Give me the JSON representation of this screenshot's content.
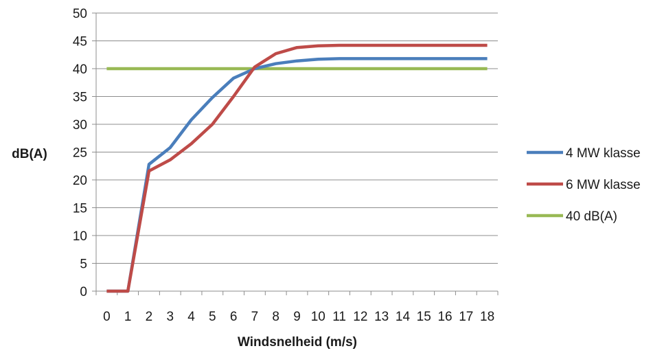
{
  "chart_data": {
    "type": "line",
    "title": "",
    "xlabel": "Windsnelheid (m/s)",
    "ylabel": "dB(A)",
    "x": [
      0,
      1,
      2,
      3,
      4,
      5,
      6,
      7,
      8,
      9,
      10,
      11,
      12,
      13,
      14,
      15,
      16,
      17,
      18
    ],
    "x_tick_labels": [
      "0",
      "1",
      "2",
      "3",
      "4",
      "5",
      "6",
      "7",
      "8",
      "9",
      "10",
      "11",
      "12",
      "13",
      "14",
      "15",
      "16",
      "17",
      "18"
    ],
    "y_ticks": [
      0,
      5,
      10,
      15,
      20,
      25,
      30,
      35,
      40,
      45,
      50
    ],
    "y_tick_labels": [
      "0",
      "5",
      "10",
      "15",
      "20",
      "25",
      "30",
      "35",
      "40",
      "45",
      "50"
    ],
    "xlim": [
      0,
      18
    ],
    "ylim": [
      0,
      50
    ],
    "grid": "horizontal",
    "legend_position": "right",
    "series": [
      {
        "name": "4 MW klasse",
        "color": "#4a7ebb",
        "values": [
          0,
          0,
          22.8,
          25.8,
          30.8,
          34.8,
          38.3,
          40.0,
          40.9,
          41.4,
          41.7,
          41.8,
          41.8,
          41.8,
          41.8,
          41.8,
          41.8,
          41.8,
          41.8
        ]
      },
      {
        "name": "6 MW klasse",
        "color": "#be4b48",
        "values": [
          0,
          0,
          21.6,
          23.6,
          26.5,
          30.0,
          35.0,
          40.3,
          42.7,
          43.8,
          44.1,
          44.2,
          44.2,
          44.2,
          44.2,
          44.2,
          44.2,
          44.2,
          44.2
        ]
      },
      {
        "name": "40 dB(A)",
        "color": "#98b954",
        "values": [
          40,
          40,
          40,
          40,
          40,
          40,
          40,
          40,
          40,
          40,
          40,
          40,
          40,
          40,
          40,
          40,
          40,
          40,
          40
        ]
      }
    ]
  }
}
